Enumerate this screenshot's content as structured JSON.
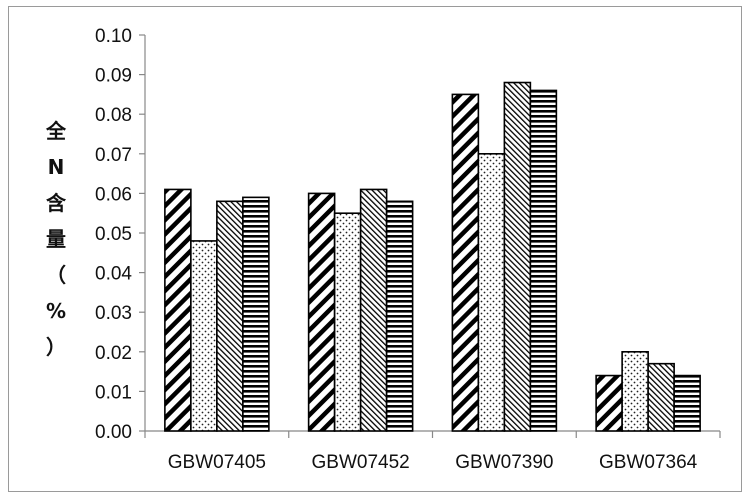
{
  "chart_data": {
    "type": "bar",
    "title": "",
    "xlabel": "",
    "ylabel": "全N含量（%）",
    "ylabel_chars": [
      "全",
      "N",
      "含",
      "量",
      "（",
      "%",
      "）"
    ],
    "categories": [
      "GBW07405",
      "GBW07452",
      "GBW07390",
      "GBW07364"
    ],
    "series": [
      {
        "pattern": "diagonal-thick",
        "values": [
          0.061,
          0.06,
          0.085,
          0.014
        ]
      },
      {
        "pattern": "dots",
        "values": [
          0.048,
          0.055,
          0.07,
          0.02
        ]
      },
      {
        "pattern": "diagonal-thin",
        "values": [
          0.058,
          0.061,
          0.088,
          0.017
        ]
      },
      {
        "pattern": "horizontal",
        "values": [
          0.059,
          0.058,
          0.086,
          0.014
        ]
      }
    ],
    "ylim": [
      0,
      0.1
    ],
    "yticks": [
      "0.00",
      "0.01",
      "0.02",
      "0.03",
      "0.04",
      "0.05",
      "0.06",
      "0.07",
      "0.08",
      "0.09",
      "0.10"
    ],
    "grid": false,
    "legend": "none"
  }
}
